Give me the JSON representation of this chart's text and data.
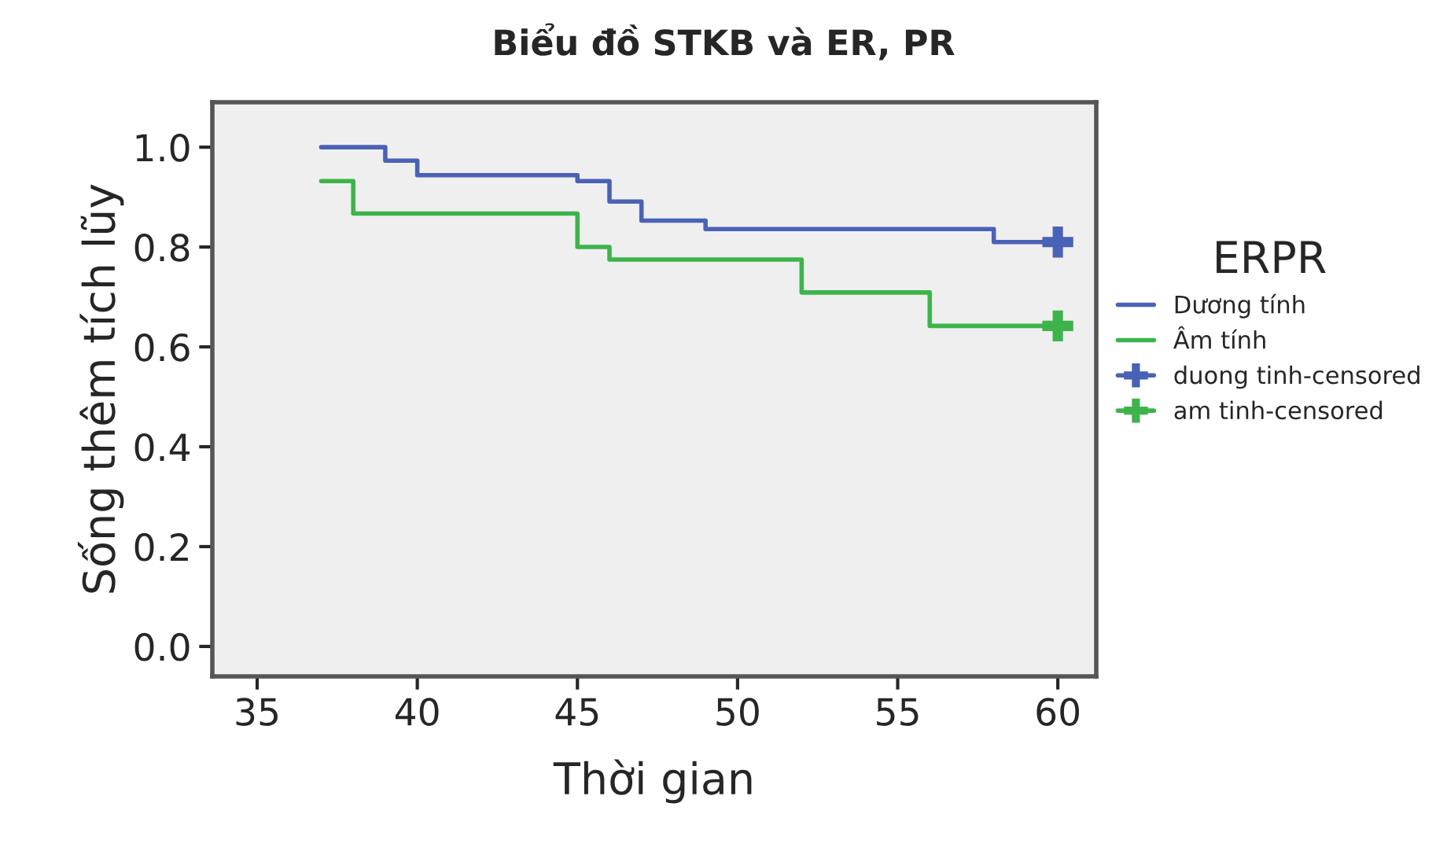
{
  "chart_data": {
    "type": "step",
    "title": "Biểu đồ STKB và ER, PR",
    "xlabel": "Thời gian",
    "ylabel": "Sống thêm tích lũy",
    "legend_title": "ERPR",
    "series": [
      {
        "name": "Dương tính",
        "color": "#4a62b5",
        "x": [
          37,
          39,
          40,
          45,
          46,
          47,
          49,
          58,
          60
        ],
        "values": [
          1.0,
          0.973,
          0.944,
          0.932,
          0.891,
          0.853,
          0.836,
          0.81,
          0.81
        ]
      },
      {
        "name": "Âm tính",
        "color": "#3cb44b",
        "x": [
          37,
          38,
          45,
          46,
          52,
          56,
          60
        ],
        "values": [
          0.932,
          0.867,
          0.8,
          0.775,
          0.709,
          0.642,
          0.642
        ]
      },
      {
        "name": "duong tinh-censored",
        "type": "scatter",
        "marker": "cross",
        "color": "#4a62b5",
        "x": [
          60
        ],
        "values": [
          0.81
        ]
      },
      {
        "name": "am tinh-censored",
        "type": "scatter",
        "marker": "cross",
        "color": "#3cb44b",
        "x": [
          60
        ],
        "values": [
          0.642
        ]
      }
    ],
    "xlim": [
      33.6,
      61.2
    ],
    "xticks": [
      35,
      40,
      45,
      50,
      55,
      60
    ],
    "ylim": [
      -0.06,
      1.09
    ],
    "yticks": [
      {
        "value": 0,
        "label": "0.0"
      },
      {
        "value": 0.2,
        "label": "0.2"
      },
      {
        "value": 0.4,
        "label": "0.4"
      },
      {
        "value": 0.6,
        "label": "0.6"
      },
      {
        "value": 0.8,
        "label": "0.8"
      },
      {
        "value": 1.0,
        "label": "1.0"
      }
    ],
    "grid": false,
    "legend": "right"
  }
}
